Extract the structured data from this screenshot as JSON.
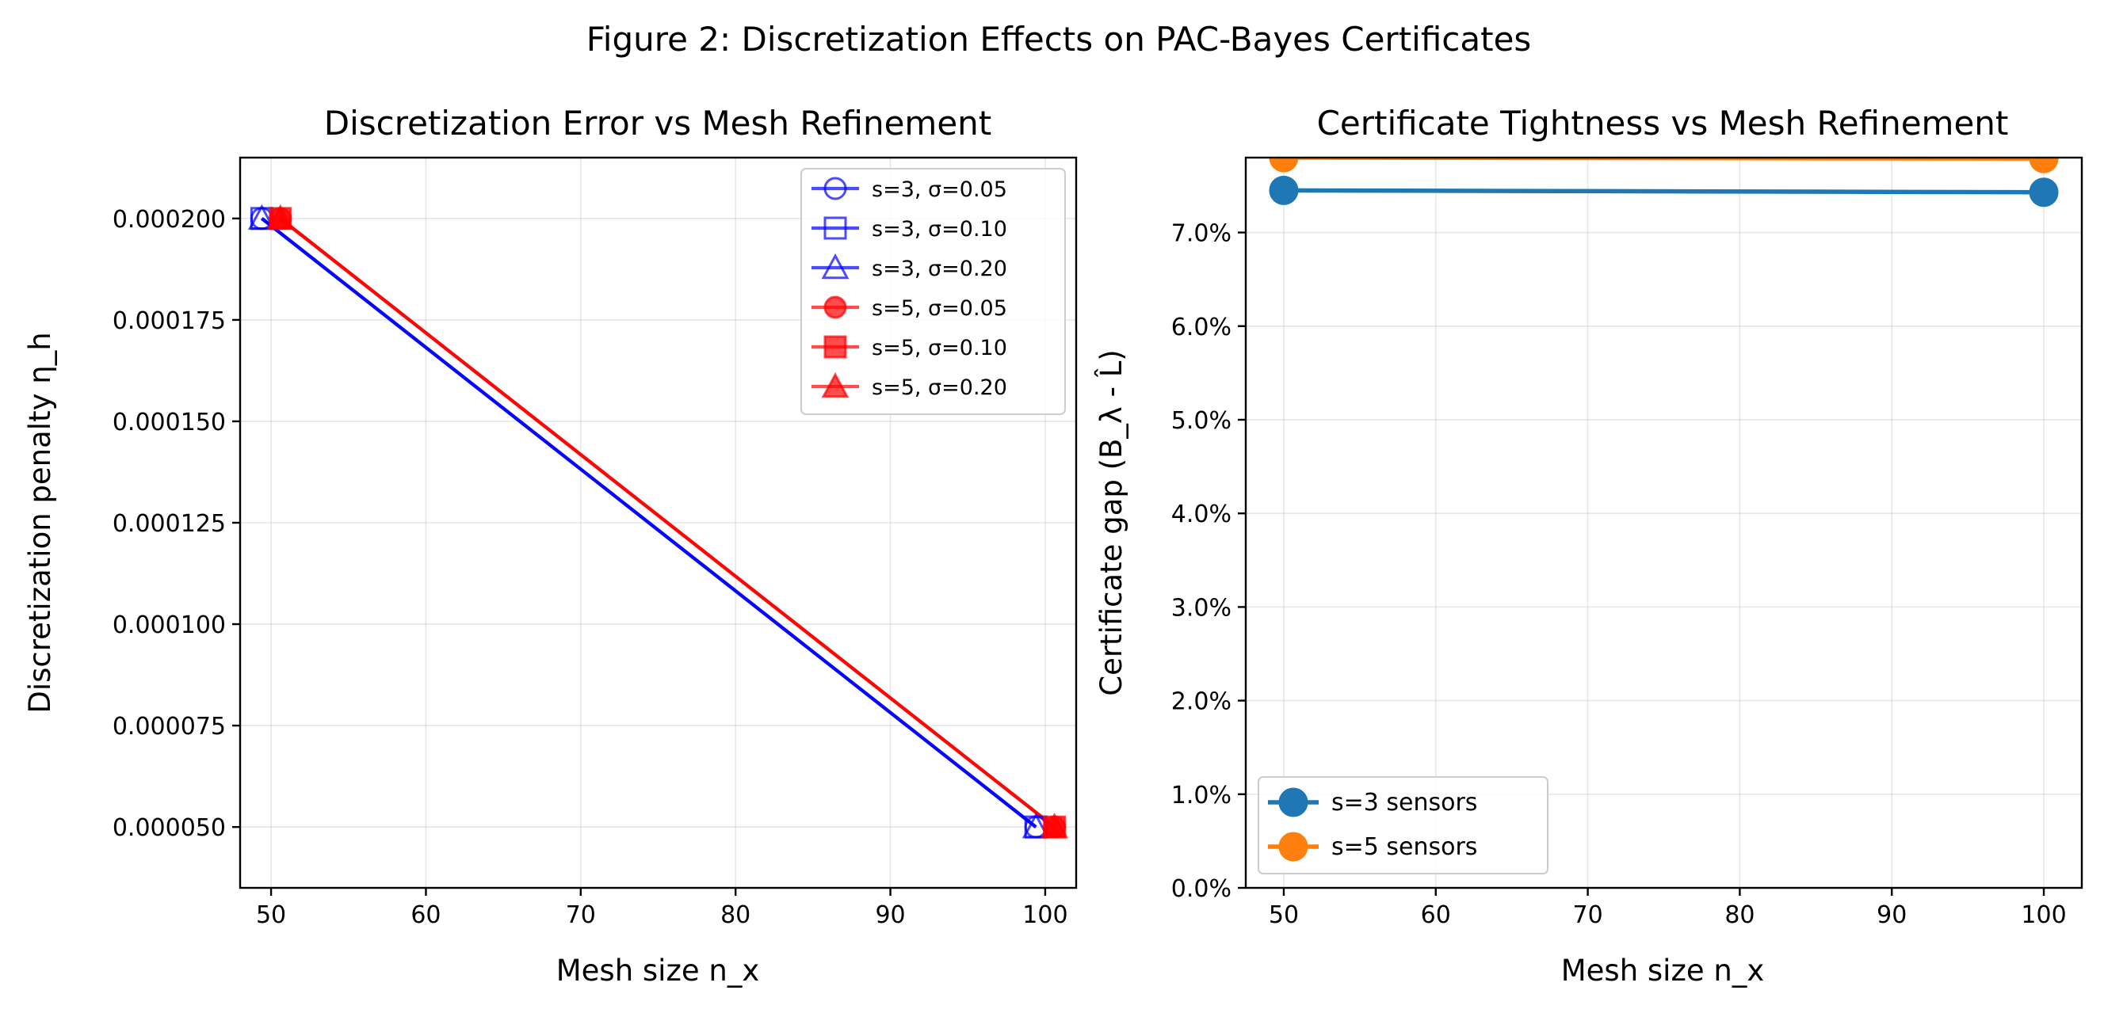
{
  "figure": {
    "suptitle": "Figure 2: Discretization Effects on PAC-Bayes Certificates"
  },
  "chart_data": [
    {
      "type": "line",
      "title": "Discretization Error vs Mesh Refinement",
      "xlabel": "Mesh size n_x",
      "ylabel": "Discretization penalty η_h",
      "xlim": [
        48,
        102
      ],
      "ylim": [
        3.5e-05,
        0.000215
      ],
      "xticks": [
        50,
        60,
        70,
        80,
        90,
        100
      ],
      "xtick_labels": [
        "50",
        "60",
        "70",
        "80",
        "90",
        "100"
      ],
      "yticks": [
        5e-05,
        7.5e-05,
        0.0001,
        0.000125,
        0.00015,
        0.000175,
        0.0002
      ],
      "ytick_labels": [
        "0.000050",
        "0.000075",
        "0.000100",
        "0.000125",
        "0.000150",
        "0.000175",
        "0.000200"
      ],
      "grid": true,
      "legend_position": "top-right",
      "series": [
        {
          "name": "s=3, σ=0.05",
          "color": "#0000ff",
          "marker": "circle",
          "filled": false,
          "alpha": 0.7,
          "x": [
            49.4,
            99.4
          ],
          "y": [
            0.0002,
            5e-05
          ]
        },
        {
          "name": "s=3, σ=0.10",
          "color": "#0000ff",
          "marker": "square",
          "filled": false,
          "alpha": 0.7,
          "x": [
            49.4,
            99.4
          ],
          "y": [
            0.0002,
            5e-05
          ]
        },
        {
          "name": "s=3, σ=0.20",
          "color": "#0000ff",
          "marker": "triangle",
          "filled": false,
          "alpha": 0.7,
          "x": [
            49.4,
            99.4
          ],
          "y": [
            0.0002,
            5e-05
          ]
        },
        {
          "name": "s=5, σ=0.05",
          "color": "#ff0000",
          "marker": "circle",
          "filled": true,
          "alpha": 0.7,
          "x": [
            50.6,
            100.6
          ],
          "y": [
            0.0002,
            5e-05
          ]
        },
        {
          "name": "s=5, σ=0.10",
          "color": "#ff0000",
          "marker": "square",
          "filled": true,
          "alpha": 0.7,
          "x": [
            50.6,
            100.6
          ],
          "y": [
            0.0002,
            5e-05
          ]
        },
        {
          "name": "s=5, σ=0.20",
          "color": "#ff0000",
          "marker": "triangle",
          "filled": true,
          "alpha": 0.7,
          "x": [
            50.6,
            100.6
          ],
          "y": [
            0.0002,
            5e-05
          ]
        }
      ]
    },
    {
      "type": "line",
      "title": "Certificate Tightness vs Mesh Refinement",
      "xlabel": "Mesh size n_x",
      "ylabel": "Certificate gap (B_λ - L̂)",
      "xlim": [
        47.5,
        102.5
      ],
      "ylim": [
        0,
        0.078
      ],
      "xticks": [
        50,
        60,
        70,
        80,
        90,
        100
      ],
      "xtick_labels": [
        "50",
        "60",
        "70",
        "80",
        "90",
        "100"
      ],
      "yticks": [
        0,
        0.01,
        0.02,
        0.03,
        0.04,
        0.05,
        0.06,
        0.07
      ],
      "ytick_labels": [
        "0.0%",
        "1.0%",
        "2.0%",
        "3.0%",
        "4.0%",
        "5.0%",
        "6.0%",
        "7.0%"
      ],
      "grid": true,
      "legend_position": "bottom-left",
      "series": [
        {
          "name": "s=3 sensors",
          "color": "#1f77b4",
          "marker": "circle",
          "filled": true,
          "x": [
            50,
            100
          ],
          "y": [
            0.0745,
            0.0743
          ]
        },
        {
          "name": "s=5 sensors",
          "color": "#ff7f0e",
          "marker": "circle",
          "filled": true,
          "x": [
            50,
            100
          ],
          "y": [
            0.078,
            0.0779
          ]
        }
      ]
    }
  ]
}
